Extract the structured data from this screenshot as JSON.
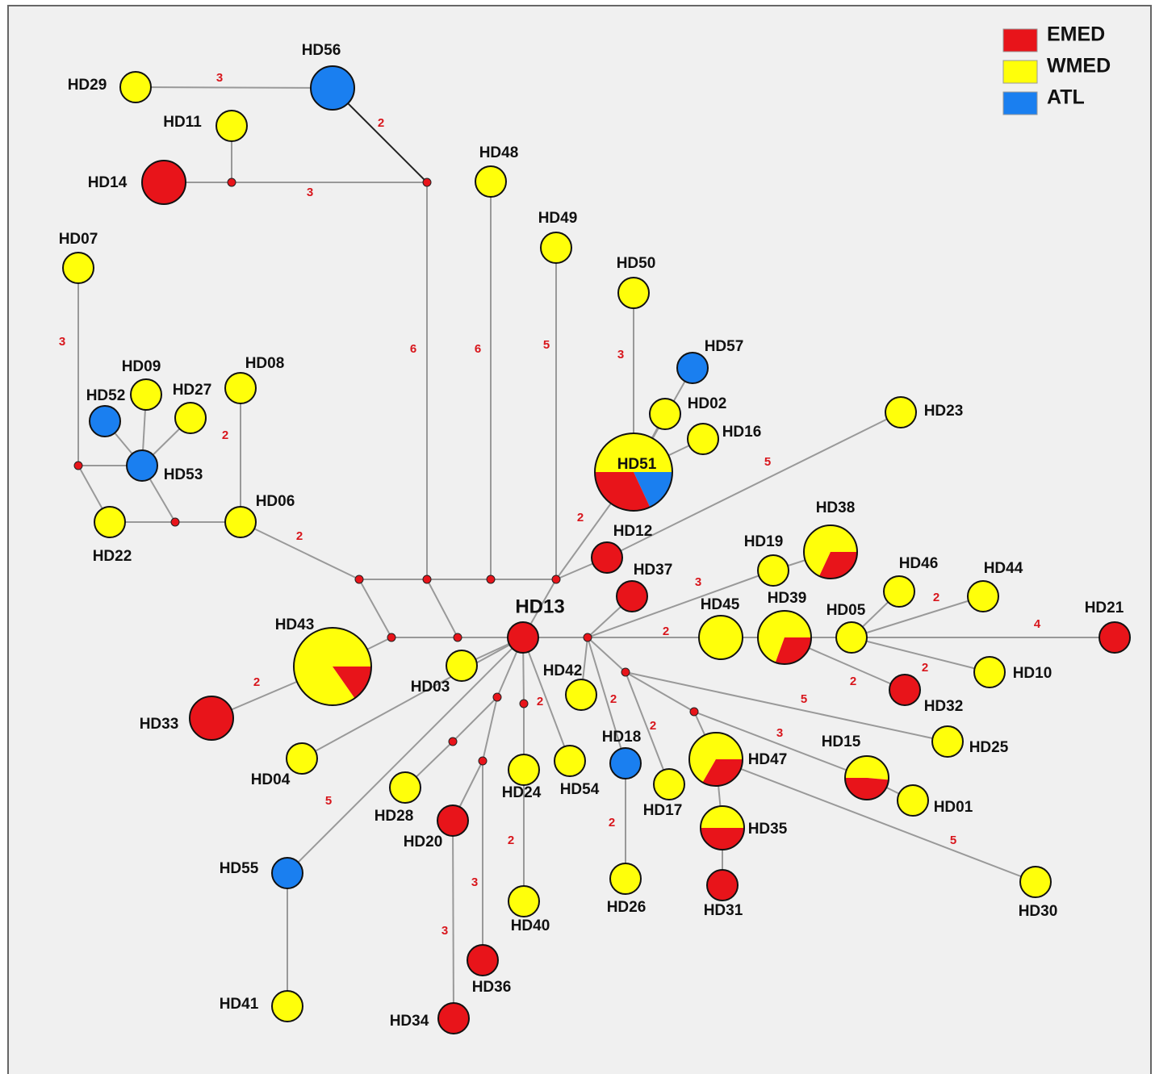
{
  "legend": [
    {
      "label": "EMED"
    },
    {
      "label": "WMED"
    },
    {
      "label": "ATL"
    }
  ],
  "nodes": [
    {
      "label": "HD29"
    },
    {
      "label": "HD56"
    },
    {
      "label": "HD11"
    },
    {
      "label": "HD14"
    },
    {
      "label": "HD48"
    },
    {
      "label": "HD07"
    },
    {
      "label": "HD49"
    },
    {
      "label": "HD50"
    },
    {
      "label": "HD57"
    },
    {
      "label": "HD09"
    },
    {
      "label": "HD52"
    },
    {
      "label": "HD27"
    },
    {
      "label": "HD08"
    },
    {
      "label": "HD02"
    },
    {
      "label": "HD16"
    },
    {
      "label": "HD23"
    },
    {
      "label": "HD53"
    },
    {
      "label": "HD51"
    },
    {
      "label": "HD22"
    },
    {
      "label": "HD06"
    },
    {
      "label": "HD12"
    },
    {
      "label": "HD38"
    },
    {
      "label": "HD19"
    },
    {
      "label": "HD46"
    },
    {
      "label": "HD44"
    },
    {
      "label": "HD37"
    },
    {
      "label": "HD13"
    },
    {
      "label": "HD43"
    },
    {
      "label": "HD45"
    },
    {
      "label": "HD39"
    },
    {
      "label": "HD05"
    },
    {
      "label": "HD21"
    },
    {
      "label": "HD10"
    },
    {
      "label": "HD03"
    },
    {
      "label": "HD42"
    },
    {
      "label": "HD33"
    },
    {
      "label": "HD32"
    },
    {
      "label": "HD25"
    },
    {
      "label": "HD04"
    },
    {
      "label": "HD24"
    },
    {
      "label": "HD54"
    },
    {
      "label": "HD18"
    },
    {
      "label": "HD47"
    },
    {
      "label": "HD15"
    },
    {
      "label": "HD17"
    },
    {
      "label": "HD28"
    },
    {
      "label": "HD01"
    },
    {
      "label": "HD20"
    },
    {
      "label": "HD35"
    },
    {
      "label": "HD55"
    },
    {
      "label": "HD26"
    },
    {
      "label": "HD40"
    },
    {
      "label": "HD31"
    },
    {
      "label": "HD30"
    },
    {
      "label": "HD36"
    },
    {
      "label": "HD41"
    },
    {
      "label": "HD34"
    }
  ],
  "mutations": [
    3,
    2,
    3,
    6,
    6,
    5,
    3,
    2,
    2,
    2,
    3,
    2,
    5,
    3,
    2,
    2,
    2,
    4,
    2,
    2,
    2,
    5,
    3,
    5,
    2,
    5,
    3,
    3,
    2,
    2
  ]
}
